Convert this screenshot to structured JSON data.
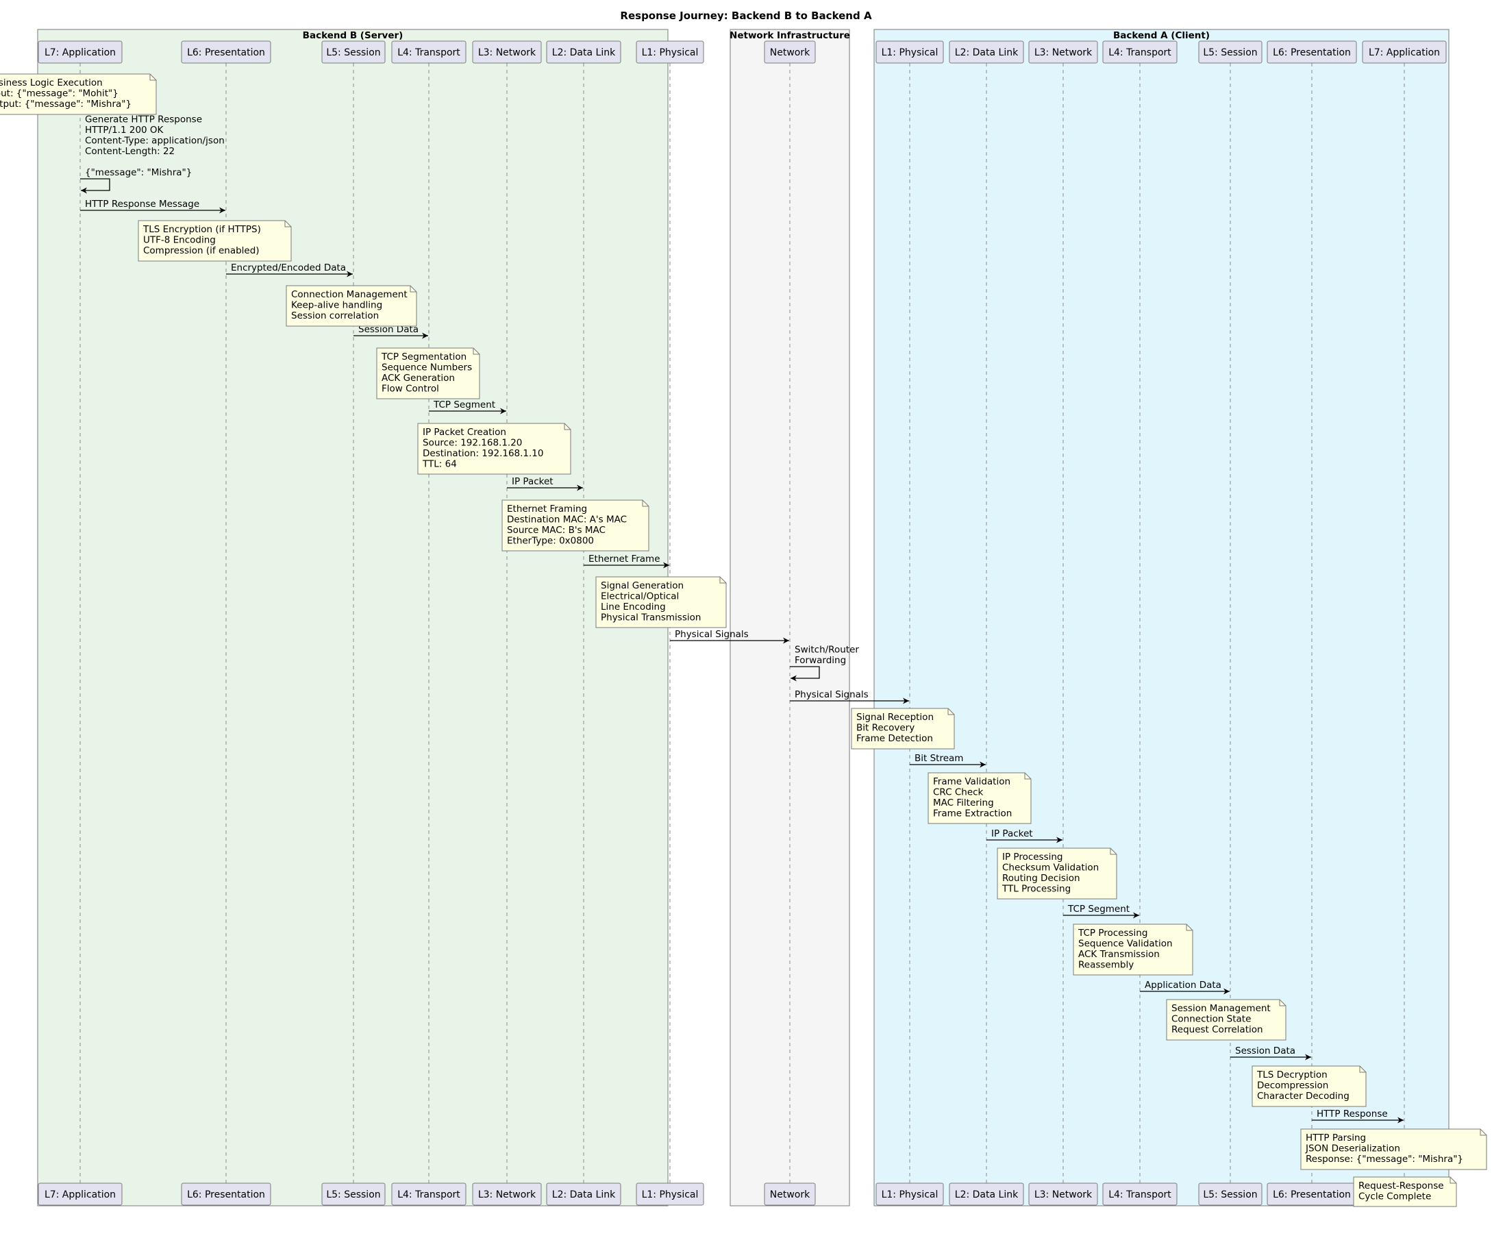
{
  "title": "Response Journey: Backend B to Backend A",
  "colors": {
    "group_b": "#e8f4e8",
    "group_net": "#f5f5f5",
    "group_a": "#e0f5fc",
    "participant_fill": "#e2e2f0",
    "note_fill": "#fefee2",
    "border": "#7a7a7a"
  },
  "groups": [
    {
      "id": "b",
      "label": "Backend B (Server)"
    },
    {
      "id": "net",
      "label": "Network Infrastructure"
    },
    {
      "id": "a",
      "label": "Backend A (Client)"
    }
  ],
  "participants": [
    {
      "id": "b7",
      "label": "L7: Application"
    },
    {
      "id": "b6",
      "label": "L6: Presentation"
    },
    {
      "id": "b5",
      "label": "L5: Session"
    },
    {
      "id": "b4",
      "label": "L4: Transport"
    },
    {
      "id": "b3",
      "label": "L3: Network"
    },
    {
      "id": "b2",
      "label": "L2: Data Link"
    },
    {
      "id": "b1",
      "label": "L1: Physical"
    },
    {
      "id": "net",
      "label": "Network"
    },
    {
      "id": "a1",
      "label": "L1: Physical"
    },
    {
      "id": "a2",
      "label": "L2: Data Link"
    },
    {
      "id": "a3",
      "label": "L3: Network"
    },
    {
      "id": "a4",
      "label": "L4: Transport"
    },
    {
      "id": "a5",
      "label": "L5: Session"
    },
    {
      "id": "a6",
      "label": "L6: Presentation"
    },
    {
      "id": "a7",
      "label": "L7: Application"
    }
  ],
  "notes": [
    {
      "over": "b7",
      "lines": [
        "Business Logic Execution",
        "Input: {\"message\": \"Mohit\"}",
        "Output: {\"message\": \"Mishra\"}"
      ]
    },
    {
      "over": "b6",
      "lines": [
        "TLS Encryption (if HTTPS)",
        "UTF-8 Encoding",
        "Compression (if enabled)"
      ]
    },
    {
      "over": "b5",
      "lines": [
        "Connection Management",
        "Keep-alive handling",
        "Session correlation"
      ]
    },
    {
      "over": "b4",
      "lines": [
        "TCP Segmentation",
        "Sequence Numbers",
        "ACK Generation",
        "Flow Control"
      ]
    },
    {
      "over": "b3",
      "lines": [
        "IP Packet Creation",
        "Source: 192.168.1.20",
        "Destination: 192.168.1.10",
        "TTL: 64"
      ]
    },
    {
      "over": "b2",
      "lines": [
        "Ethernet Framing",
        "Destination MAC: A's MAC",
        "Source MAC: B's MAC",
        "EtherType: 0x0800"
      ]
    },
    {
      "over": "b1",
      "lines": [
        "Signal Generation",
        "Electrical/Optical",
        "Line Encoding",
        "Physical Transmission"
      ]
    },
    {
      "over": "a1",
      "lines": [
        "Signal Reception",
        "Bit Recovery",
        "Frame Detection"
      ]
    },
    {
      "over": "a2",
      "lines": [
        "Frame Validation",
        "CRC Check",
        "MAC Filtering",
        "Frame Extraction"
      ]
    },
    {
      "over": "a3",
      "lines": [
        "IP Processing",
        "Checksum Validation",
        "Routing Decision",
        "TTL Processing"
      ]
    },
    {
      "over": "a4",
      "lines": [
        "TCP Processing",
        "Sequence Validation",
        "ACK Transmission",
        "Reassembly"
      ]
    },
    {
      "over": "a5",
      "lines": [
        "Session Management",
        "Connection State",
        "Request Correlation"
      ]
    },
    {
      "over": "a6",
      "lines": [
        "TLS Decryption",
        "Decompression",
        "Character Decoding"
      ]
    },
    {
      "over": "a7",
      "lines": [
        "HTTP Parsing",
        "JSON Deserialization",
        "Response: {\"message\": \"Mishra\"}"
      ]
    },
    {
      "over": "a7",
      "lines": [
        "Request-Response",
        "Cycle Complete"
      ]
    }
  ],
  "messages": [
    {
      "from": "b7",
      "to": "b7",
      "lines": [
        "Generate HTTP Response",
        "HTTP/1.1 200 OK",
        "Content-Type: application/json",
        "Content-Length: 22",
        "",
        "{\"message\": \"Mishra\"}"
      ]
    },
    {
      "from": "b7",
      "to": "b6",
      "lines": [
        "HTTP Response Message"
      ]
    },
    {
      "from": "b6",
      "to": "b5",
      "lines": [
        "Encrypted/Encoded Data"
      ]
    },
    {
      "from": "b5",
      "to": "b4",
      "lines": [
        "Session Data"
      ]
    },
    {
      "from": "b4",
      "to": "b3",
      "lines": [
        "TCP Segment"
      ]
    },
    {
      "from": "b3",
      "to": "b2",
      "lines": [
        "IP Packet"
      ]
    },
    {
      "from": "b2",
      "to": "b1",
      "lines": [
        "Ethernet Frame"
      ]
    },
    {
      "from": "b1",
      "to": "net",
      "lines": [
        "Physical Signals"
      ]
    },
    {
      "from": "net",
      "to": "net",
      "lines": [
        "Switch/Router",
        "Forwarding"
      ]
    },
    {
      "from": "net",
      "to": "a1",
      "lines": [
        "Physical Signals"
      ]
    },
    {
      "from": "a1",
      "to": "a2",
      "lines": [
        "Bit Stream"
      ]
    },
    {
      "from": "a2",
      "to": "a3",
      "lines": [
        "IP Packet"
      ]
    },
    {
      "from": "a3",
      "to": "a4",
      "lines": [
        "TCP Segment"
      ]
    },
    {
      "from": "a4",
      "to": "a5",
      "lines": [
        "Application Data"
      ]
    },
    {
      "from": "a5",
      "to": "a6",
      "lines": [
        "Session Data"
      ]
    },
    {
      "from": "a6",
      "to": "a7",
      "lines": [
        "HTTP Response"
      ]
    }
  ]
}
